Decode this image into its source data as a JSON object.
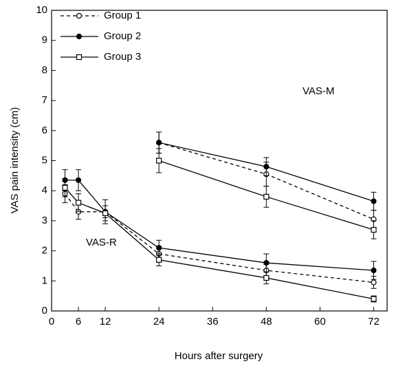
{
  "chart_data": {
    "type": "line",
    "x_label": "Hours after surgery",
    "y_label": "VAS pain intensity (cm)",
    "xlim": [
      0,
      75
    ],
    "ylim": [
      0,
      10
    ],
    "xticks": [
      0,
      6,
      12,
      24,
      36,
      48,
      60,
      72
    ],
    "yticks": [
      0,
      1,
      2,
      3,
      4,
      5,
      6,
      7,
      8,
      9,
      10
    ],
    "x": [
      3,
      6,
      12,
      24,
      48,
      72
    ],
    "x_m": [
      24,
      48,
      72
    ],
    "annotations": [
      "VAS-R",
      "VAS-M"
    ],
    "legend": "upper left",
    "series": [
      {
        "name": "Group 1",
        "color": "#000000",
        "dashed": true,
        "marker": "open-circle",
        "values": [
          3.9,
          3.3,
          3.3,
          1.9,
          1.35,
          0.95
        ],
        "errors": [
          0.3,
          0.25,
          0.2,
          0.25,
          0.2,
          0.2
        ],
        "values_m": [
          5.6,
          4.55,
          3.05
        ],
        "errors_m": [
          0.35,
          0.4,
          0.3
        ]
      },
      {
        "name": "Group 2",
        "color": "#000000",
        "dashed": false,
        "marker": "filled-circle",
        "values": [
          4.35,
          4.35,
          3.3,
          2.1,
          1.6,
          1.35
        ],
        "errors": [
          0.35,
          0.35,
          0.4,
          0.25,
          0.3,
          0.3
        ],
        "values_m": [
          5.6,
          4.8,
          3.65
        ],
        "errors_m": [
          0.35,
          0.3,
          0.3
        ]
      },
      {
        "name": "Group 3",
        "color": "#000000",
        "dashed": false,
        "marker": "open-square",
        "values": [
          4.1,
          3.6,
          3.25,
          1.7,
          1.1,
          0.4
        ],
        "errors": [
          0.3,
          0.3,
          0.25,
          0.2,
          0.2,
          0.1
        ],
        "values_m": [
          5.0,
          3.8,
          2.7
        ],
        "errors_m": [
          0.4,
          0.35,
          0.3
        ]
      }
    ]
  }
}
